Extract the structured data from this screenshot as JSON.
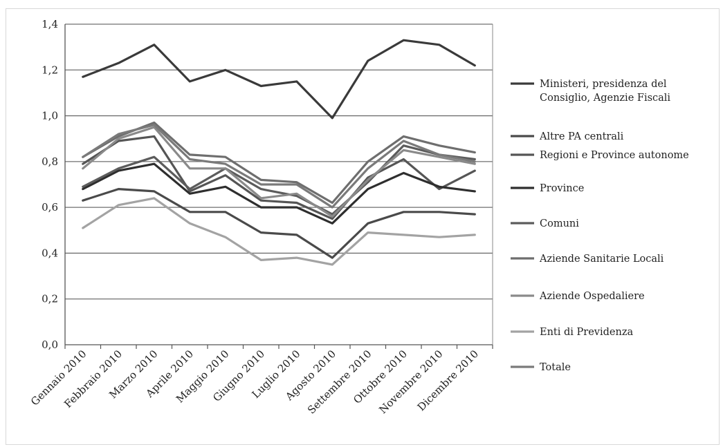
{
  "chart_data": {
    "type": "line",
    "title": "",
    "xlabel": "",
    "ylabel": "",
    "ylim": [
      0,
      1.4
    ],
    "yticks": [
      "0,0",
      "0,2",
      "0,4",
      "0,6",
      "0,8",
      "1,0",
      "1,2",
      "1,4"
    ],
    "grid": "horizontal",
    "legend_position": "right",
    "categories": [
      "Gennaio 2010",
      "Febbraio 2010",
      "Marzo 2010",
      "Aprile 2010",
      "Maggio 2010",
      "Giugno 2010",
      "Luglio 2010",
      "Agosto 2010",
      "Settembre 2010",
      "Ottobre 2010",
      "Novembre 2010",
      "Dicembre 2010"
    ],
    "series": [
      {
        "name": "Ministeri, presidenza del Consiglio, Agenzie Fiscali",
        "color": "#3a3a3a",
        "values": [
          1.17,
          1.23,
          1.31,
          1.15,
          1.2,
          1.13,
          1.15,
          0.99,
          1.24,
          1.33,
          1.31,
          1.22
        ]
      },
      {
        "name": "Altre PA centrali",
        "color": "#4a4a4a",
        "values": [
          0.63,
          0.68,
          0.67,
          0.58,
          0.58,
          0.49,
          0.48,
          0.38,
          0.53,
          0.58,
          0.58,
          0.57
        ]
      },
      {
        "name": "Regioni e Province autonome",
        "color": "#555555",
        "values": [
          0.79,
          0.89,
          0.91,
          0.67,
          0.74,
          0.63,
          0.62,
          0.55,
          0.73,
          0.81,
          0.68,
          0.76
        ]
      },
      {
        "name": "Province",
        "color": "#2e2e2e",
        "values": [
          0.68,
          0.76,
          0.79,
          0.66,
          0.69,
          0.6,
          0.6,
          0.53,
          0.68,
          0.75,
          0.69,
          0.67
        ]
      },
      {
        "name": "Comuni",
        "color": "#5c5c5c",
        "values": [
          0.69,
          0.77,
          0.82,
          0.68,
          0.77,
          0.68,
          0.65,
          0.57,
          0.71,
          0.87,
          0.83,
          0.81
        ]
      },
      {
        "name": "Aziende Sanitarie Locali",
        "color": "#6e6e6e",
        "values": [
          0.82,
          0.91,
          0.97,
          0.83,
          0.82,
          0.72,
          0.71,
          0.62,
          0.8,
          0.91,
          0.87,
          0.84
        ]
      },
      {
        "name": "Aziende Ospedaliere",
        "color": "#8a8a8a",
        "values": [
          0.77,
          0.9,
          0.95,
          0.77,
          0.77,
          0.64,
          0.66,
          0.56,
          0.72,
          0.85,
          0.82,
          0.79
        ]
      },
      {
        "name": "Enti di Previdenza",
        "color": "#a3a3a3",
        "values": [
          0.51,
          0.61,
          0.64,
          0.53,
          0.47,
          0.37,
          0.38,
          0.35,
          0.49,
          0.48,
          0.47,
          0.48
        ]
      },
      {
        "name": "Totale",
        "color": "#7a7a7a",
        "values": [
          0.82,
          0.92,
          0.96,
          0.81,
          0.79,
          0.7,
          0.7,
          0.6,
          0.77,
          0.89,
          0.83,
          0.8
        ]
      }
    ]
  }
}
